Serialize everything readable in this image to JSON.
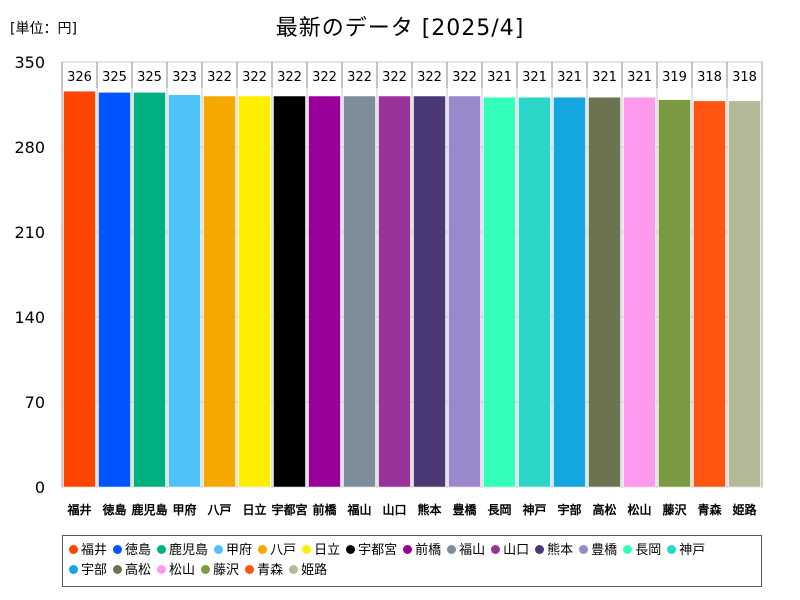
{
  "unit_label": "[単位：円]",
  "chart_data": {
    "type": "bar",
    "title": "最新のデータ [2025/4]",
    "xlabel": "",
    "ylabel": "",
    "ylim": [
      0,
      350
    ],
    "yticks": [
      "0",
      "70",
      "140",
      "210",
      "280",
      "350"
    ],
    "grid": true,
    "legend_position": "bottom",
    "categories": [
      "福井",
      "徳島",
      "鹿児島",
      "甲府",
      "八戸",
      "日立",
      "宇都宮",
      "前橋",
      "福山",
      "山口",
      "熊本",
      "豊橋",
      "長岡",
      "神戸",
      "宇部",
      "高松",
      "松山",
      "藤沢",
      "青森",
      "姫路"
    ],
    "values": [
      326,
      325,
      325,
      323,
      322,
      322,
      322,
      322,
      322,
      322,
      322,
      322,
      321,
      321,
      321,
      321,
      321,
      319,
      318,
      318
    ],
    "colors": [
      "#ff4500",
      "#0055ff",
      "#00b080",
      "#4fc3f7",
      "#f5a800",
      "#ffee00",
      "#000000",
      "#990099",
      "#7f8c99",
      "#993399",
      "#4b3875",
      "#9988cc",
      "#33ffbb",
      "#29d6c8",
      "#14a6e0",
      "#6b7350",
      "#ff99ee",
      "#7a9940",
      "#ff5511",
      "#b5b899"
    ]
  }
}
